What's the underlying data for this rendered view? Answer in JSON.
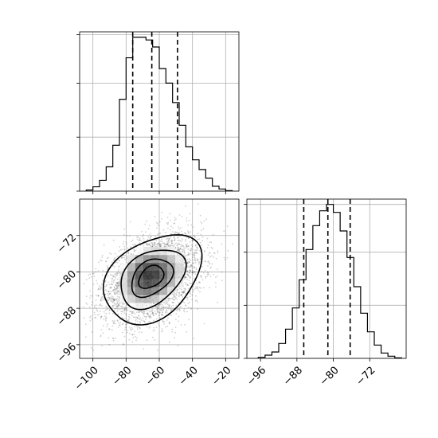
{
  "chart_data": [
    {
      "type": "histogram",
      "panel": "top-left",
      "parameter_axis": "x",
      "xlim": [
        -108,
        -12
      ],
      "bins": [
        {
          "x0": -104,
          "x1": -100,
          "count": 2
        },
        {
          "x0": -100,
          "x1": -96,
          "count": 8
        },
        {
          "x0": -96,
          "x1": -92,
          "count": 20
        },
        {
          "x0": -92,
          "x1": -88,
          "count": 45
        },
        {
          "x0": -88,
          "x1": -84,
          "count": 85
        },
        {
          "x0": -84,
          "x1": -80,
          "count": 170
        },
        {
          "x0": -80,
          "x1": -76,
          "count": 247
        },
        {
          "x0": -76,
          "x1": -72,
          "count": 285
        },
        {
          "x0": -72,
          "x1": -68,
          "count": 285
        },
        {
          "x0": -68,
          "x1": -64,
          "count": 280
        },
        {
          "x0": -64,
          "x1": -60,
          "count": 267
        },
        {
          "x0": -60,
          "x1": -56,
          "count": 227
        },
        {
          "x0": -56,
          "x1": -52,
          "count": 200
        },
        {
          "x0": -52,
          "x1": -48,
          "count": 164
        },
        {
          "x0": -48,
          "x1": -44,
          "count": 122
        },
        {
          "x0": -44,
          "x1": -40,
          "count": 82
        },
        {
          "x0": -40,
          "x1": -36,
          "count": 58
        },
        {
          "x0": -36,
          "x1": -32,
          "count": 40
        },
        {
          "x0": -32,
          "x1": -28,
          "count": 24
        },
        {
          "x0": -28,
          "x1": -24,
          "count": 9
        },
        {
          "x0": -24,
          "x1": -20,
          "count": 4
        },
        {
          "x0": -20,
          "x1": -16,
          "count": 1
        }
      ],
      "ylim": [
        0,
        295
      ],
      "quantiles": [
        -76,
        -64.5,
        -49
      ],
      "yticks": [
        0,
        100,
        200,
        290
      ]
    },
    {
      "type": "heatmap",
      "panel": "bottom-left",
      "xlim": [
        -108,
        -12
      ],
      "ylim": [
        -99,
        -64
      ],
      "xticks": [
        -100,
        -80,
        -60,
        -40,
        -20
      ],
      "xtick_labels": [
        "−100",
        "−80",
        "−60",
        "−40",
        "−20"
      ],
      "yticks": [
        -72,
        -80,
        -88,
        -96
      ],
      "ytick_labels": [
        "−72",
        "−80",
        "−88",
        "−96"
      ],
      "mean": [
        -64,
        -81.5
      ],
      "std": [
        15,
        5
      ],
      "correlation": 0.35,
      "point_count": 3500,
      "density_peak": [
        -70,
        -79
      ],
      "contour_levels": [
        0.12,
        0.39,
        0.68,
        0.87
      ]
    },
    {
      "type": "histogram",
      "panel": "bottom-right",
      "parameter_axis": "y",
      "xlim": [
        -99,
        -64
      ],
      "xticks": [
        -96,
        -88,
        -80,
        -72
      ],
      "xtick_labels": [
        "−96",
        "−88",
        "−80",
        "−72"
      ],
      "bins": [
        {
          "x0": -96.5,
          "x1": -95,
          "count": 2
        },
        {
          "x0": -95,
          "x1": -93.5,
          "count": 6
        },
        {
          "x0": -93.5,
          "x1": -92,
          "count": 12
        },
        {
          "x0": -92,
          "x1": -90.5,
          "count": 28
        },
        {
          "x0": -90.5,
          "x1": -89,
          "count": 55
        },
        {
          "x0": -89,
          "x1": -87.5,
          "count": 95
        },
        {
          "x0": -87.5,
          "x1": -86,
          "count": 148
        },
        {
          "x0": -86,
          "x1": -84.5,
          "count": 205
        },
        {
          "x0": -84.5,
          "x1": -83,
          "count": 250
        },
        {
          "x0": -83,
          "x1": -81.5,
          "count": 278
        },
        {
          "x0": -81.5,
          "x1": -80,
          "count": 290
        },
        {
          "x0": -80,
          "x1": -78.5,
          "count": 275
        },
        {
          "x0": -78.5,
          "x1": -77,
          "count": 240
        },
        {
          "x0": -77,
          "x1": -75.5,
          "count": 190
        },
        {
          "x0": -75.5,
          "x1": -74,
          "count": 135
        },
        {
          "x0": -74,
          "x1": -72.5,
          "count": 85
        },
        {
          "x0": -72.5,
          "x1": -71,
          "count": 50
        },
        {
          "x0": -71,
          "x1": -69.5,
          "count": 25
        },
        {
          "x0": -69.5,
          "x1": -68,
          "count": 10
        },
        {
          "x0": -68,
          "x1": -66.5,
          "count": 4
        },
        {
          "x0": -66.5,
          "x1": -65,
          "count": 1
        }
      ],
      "ylim": [
        0,
        300
      ],
      "quantiles": [
        -86.5,
        -81.2,
        -76.3
      ],
      "yticks": [
        0,
        100,
        200,
        290
      ]
    }
  ]
}
